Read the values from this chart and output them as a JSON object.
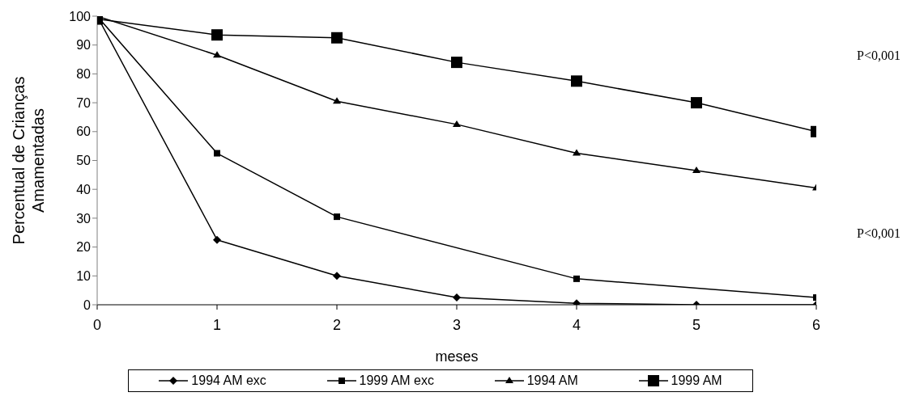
{
  "chart_data": {
    "type": "line",
    "xlabel": "meses",
    "ylabel": "Percentual de Crianças Amamentadas",
    "x": [
      0,
      1,
      2,
      3,
      4,
      5,
      6
    ],
    "xlim": [
      0,
      6
    ],
    "xticks": [
      0,
      1,
      2,
      3,
      4,
      5,
      6
    ],
    "ylim": [
      0,
      100
    ],
    "yticks": [
      0,
      10,
      20,
      30,
      40,
      50,
      60,
      70,
      80,
      90,
      100
    ],
    "grid": false,
    "legend": "bottom",
    "line_style": "solid",
    "series": [
      {
        "name": "1994 AM exc",
        "color": "#000000",
        "marker": "diamond",
        "values": [
          100,
          22.5,
          10,
          2.5,
          0.5,
          0,
          0
        ]
      },
      {
        "name": "1999 AM exc",
        "color": "#000000",
        "marker": "square",
        "values": [
          100,
          52.5,
          30.5,
          null,
          9,
          null,
          2.5
        ]
      },
      {
        "name": "1994 AM",
        "color": "#000000",
        "marker": "triangle",
        "values": [
          100,
          86.5,
          70.5,
          62.5,
          52.5,
          46.5,
          40.5
        ]
      },
      {
        "name": "1999 AM",
        "color": "#000000",
        "marker": "square",
        "values": [
          99,
          93.5,
          92.5,
          84,
          77.5,
          70,
          60
        ]
      }
    ],
    "annotations": [
      "P<0,001",
      "P<0,001"
    ]
  }
}
